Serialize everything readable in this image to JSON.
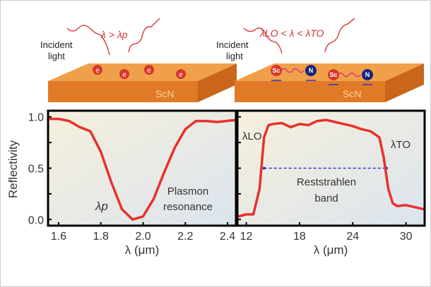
{
  "illustrations": {
    "left": {
      "incident_label": [
        "Incident",
        "light"
      ],
      "condition": "λ > λp",
      "material": "ScN",
      "particle": "e"
    },
    "right": {
      "incident_label": [
        "Incident",
        "light"
      ],
      "condition": "λLO < λ < λTO",
      "material": "ScN",
      "atoms": [
        "Sc",
        "N"
      ]
    }
  },
  "colors": {
    "curve": "#e8312a",
    "slab_top": "#f0a04a",
    "slab_side": "#e07a26",
    "electron": "#d8362c",
    "nitrogen": "#1a237e",
    "arrow": "#2b36c9"
  },
  "chart_data": [
    {
      "type": "line",
      "ylabel": "Reflectivity",
      "xlabel": "λ (μm)",
      "xlim": [
        1.55,
        2.44
      ],
      "ylim": [
        -0.06,
        1.06
      ],
      "xticks": [
        "1.6",
        "1.8",
        "2.0",
        "2.2",
        "2.4"
      ],
      "xtick_values": [
        1.6,
        1.8,
        2.0,
        2.2,
        2.4
      ],
      "yticks": [
        "0.0",
        "0.5",
        "1.0"
      ],
      "ytick_values": [
        0,
        0.5,
        1.0
      ],
      "annotations": [
        "λp",
        "Plasmon",
        "resonance"
      ],
      "x": [
        1.55,
        1.6,
        1.65,
        1.7,
        1.75,
        1.8,
        1.85,
        1.9,
        1.95,
        2.0,
        2.05,
        2.1,
        2.15,
        2.2,
        2.25,
        2.3,
        2.35,
        2.44
      ],
      "y": [
        0.98,
        0.98,
        0.96,
        0.9,
        0.86,
        0.66,
        0.36,
        0.1,
        0.0,
        0.03,
        0.2,
        0.46,
        0.7,
        0.88,
        0.96,
        0.96,
        0.95,
        0.97
      ]
    },
    {
      "type": "line",
      "xlabel": "λ (μm)",
      "xlim": [
        11.0,
        32.1
      ],
      "ylim": [
        -0.06,
        1.06
      ],
      "xticks": [
        "12",
        "18",
        "24",
        "30"
      ],
      "xtick_values": [
        12,
        18,
        24,
        30
      ],
      "annotations": [
        "λLO",
        "λTO",
        "Reststrahlen",
        "band"
      ],
      "band": [
        14.0,
        27.8
      ],
      "band_level": 0.5,
      "x": [
        11.1,
        12,
        12.8,
        13.5,
        14,
        14.5,
        15,
        16,
        17,
        18,
        19,
        20,
        21,
        22,
        23,
        24,
        25,
        26,
        27,
        27.5,
        28,
        28.5,
        29,
        30,
        31,
        32
      ],
      "y": [
        0.03,
        0.05,
        0.05,
        0.3,
        0.8,
        0.92,
        0.93,
        0.94,
        0.9,
        0.93,
        0.92,
        0.96,
        0.97,
        0.95,
        0.93,
        0.91,
        0.88,
        0.86,
        0.8,
        0.6,
        0.3,
        0.16,
        0.13,
        0.14,
        0.12,
        0.1
      ]
    }
  ]
}
